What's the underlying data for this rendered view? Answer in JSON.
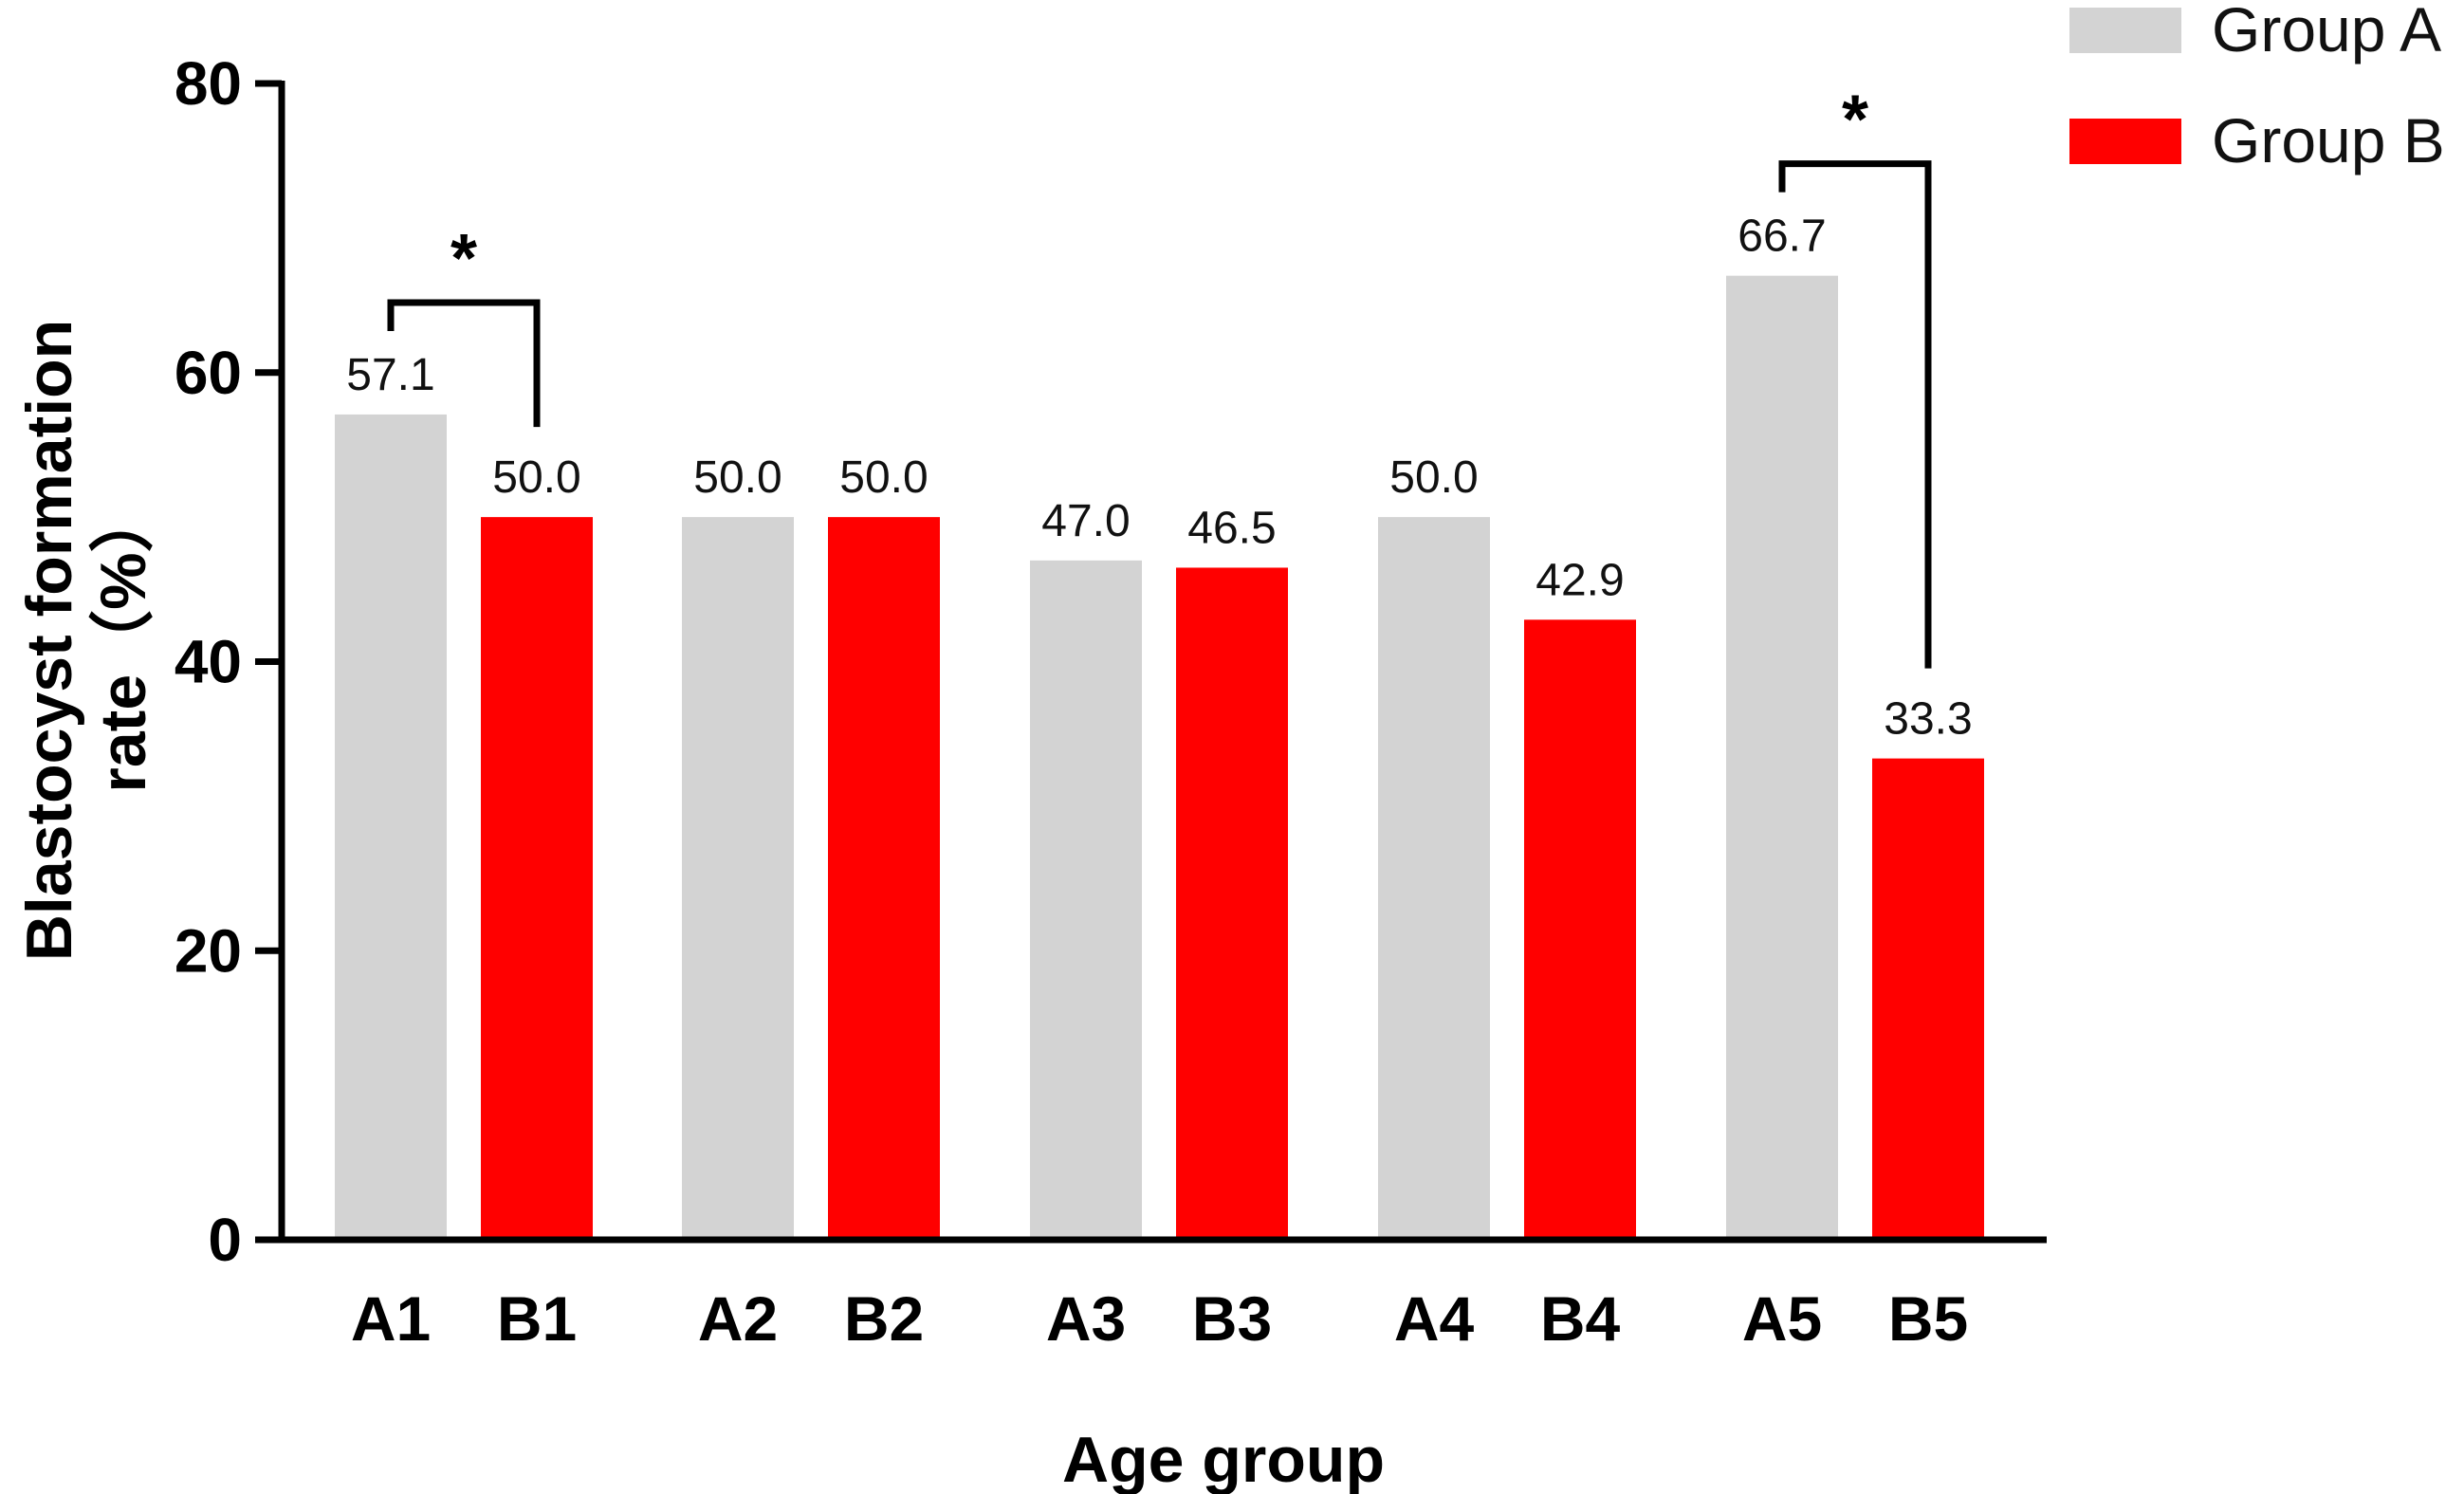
{
  "chart_data": {
    "type": "bar",
    "title": "",
    "xlabel": "Age group",
    "ylabel_line1": "Blastocyst formation",
    "ylabel_line2": "rate（%）",
    "ylim": [
      0,
      80
    ],
    "yticks": [
      "0",
      "20",
      "40",
      "60",
      "80"
    ],
    "categories": [
      "A1",
      "B1",
      "A2",
      "B2",
      "A3",
      "B3",
      "A4",
      "B4",
      "A5",
      "B5"
    ],
    "values": [
      57.1,
      50.0,
      50.0,
      50.0,
      47.0,
      46.5,
      50.0,
      42.9,
      66.7,
      33.3
    ],
    "value_labels": [
      "57.1",
      "50.0",
      "50.0",
      "50.0",
      "47.0",
      "46.5",
      "50.0",
      "42.9",
      "66.7",
      "33.3"
    ],
    "groups": [
      "A",
      "B",
      "A",
      "B",
      "A",
      "B",
      "A",
      "B",
      "A",
      "B"
    ],
    "legend": [
      {
        "key": "A",
        "label": "Group A",
        "color": "#d3d3d3"
      },
      {
        "key": "B",
        "label": "Group B",
        "color": "#ff0000"
      }
    ],
    "legend_position": "top-right",
    "significance": [
      {
        "from": "A1",
        "to": "B1",
        "label": "*"
      },
      {
        "from": "A5",
        "to": "B5",
        "label": "*"
      }
    ]
  }
}
